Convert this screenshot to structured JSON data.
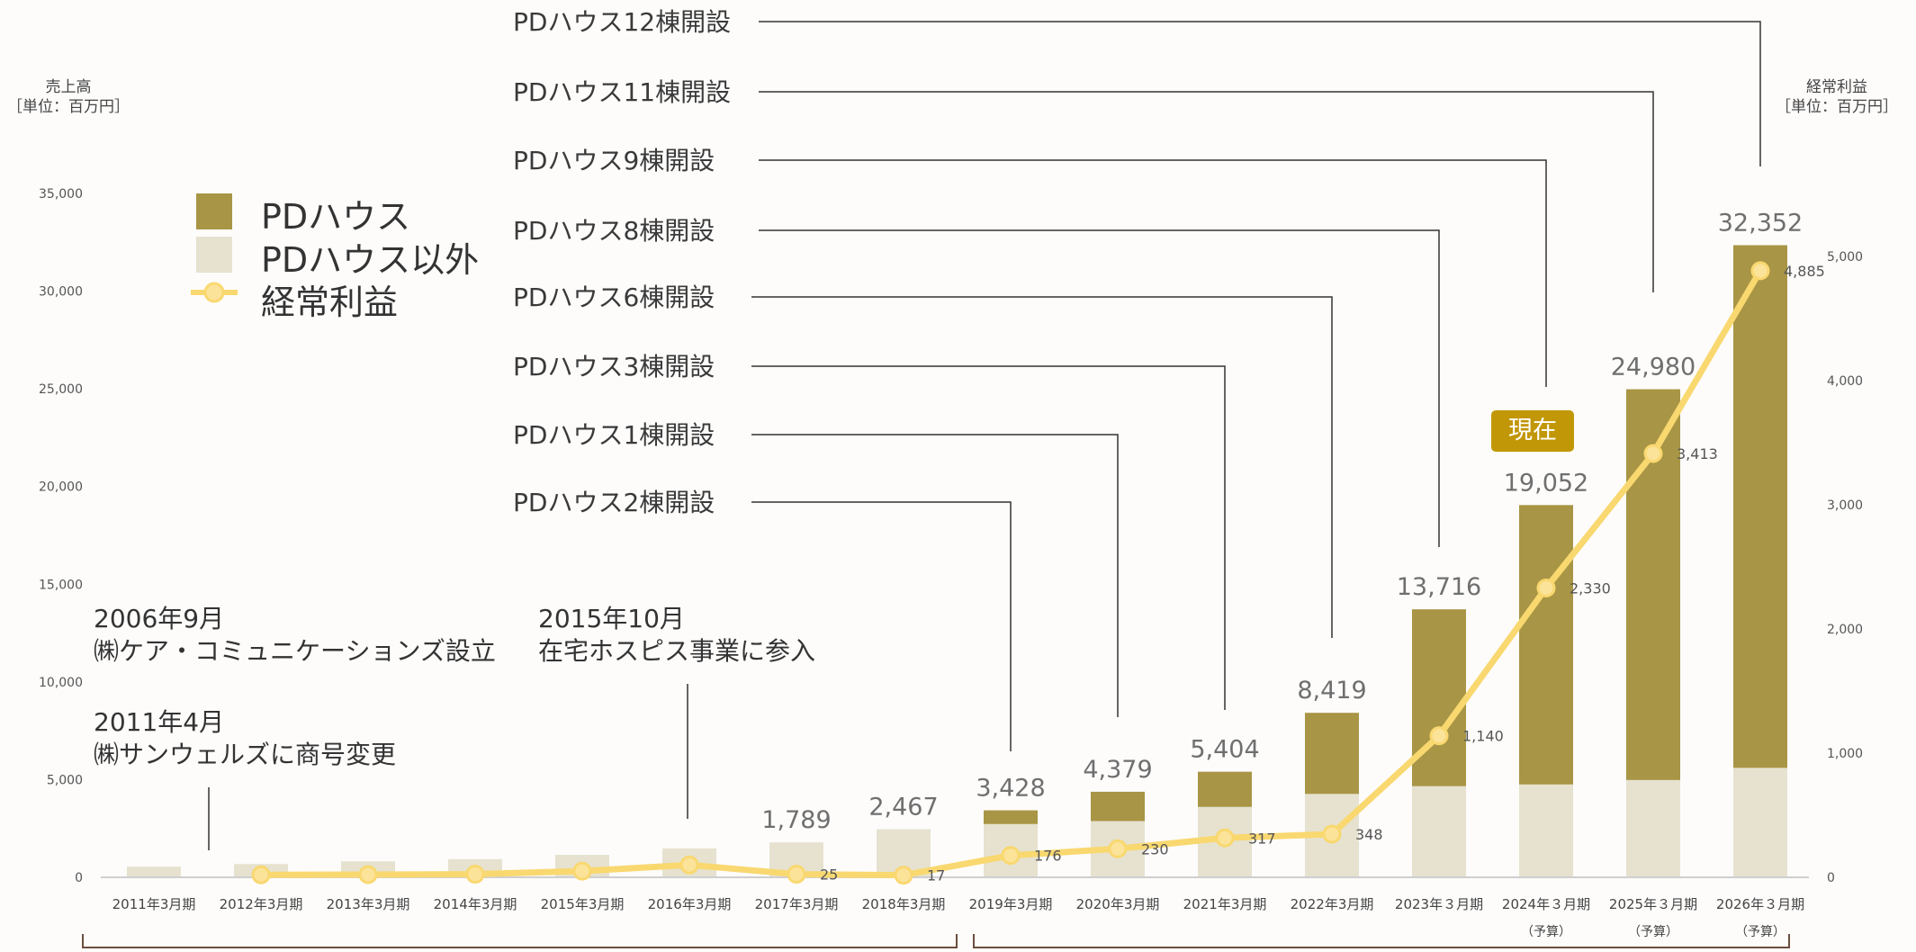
{
  "chart_data": {
    "type": "bar",
    "categories": [
      "2011年3月期",
      "2012年3月期",
      "2013年3月期",
      "2014年3月期",
      "2015年3月期",
      "2016年3月期",
      "2017年3月期",
      "2018年3月期",
      "2019年3月期",
      "2020年3月期",
      "2021年3月期",
      "2022年3月期",
      "2023年３月期",
      "2024年３月期",
      "2025年３月期",
      "2026年３月期"
    ],
    "category_notes": [
      "",
      "",
      "",
      "",
      "",
      "",
      "",
      "",
      "",
      "",
      "",
      "",
      "",
      "（予算）",
      "（予算）",
      "（予算）"
    ],
    "series": [
      {
        "name": "PDハウス",
        "type": "bar",
        "stack": "sales",
        "color": "#a89545",
        "values": [
          0,
          0,
          0,
          0,
          0,
          0,
          0,
          0,
          700,
          1500,
          1800,
          4150,
          9050,
          14300,
          20000,
          26750
        ]
      },
      {
        "name": "PDハウス以外",
        "type": "bar",
        "stack": "sales",
        "color": "#e6e2cf",
        "values": [
          550,
          680,
          820,
          930,
          1150,
          1480,
          1789,
          2467,
          2728,
          2879,
          3604,
          4269,
          4666,
          4752,
          4980,
          5602
        ]
      },
      {
        "name": "経常利益",
        "type": "line",
        "axis": "right",
        "color": "#f9d870",
        "values": [
          null,
          20,
          22,
          25,
          50,
          100,
          25,
          17,
          176,
          230,
          317,
          348,
          1140,
          2330,
          3413,
          4885
        ]
      }
    ],
    "total_labels": [
      "",
      "",
      "",
      "",
      "",
      "",
      "1,789",
      "2,467",
      "3,428",
      "4,379",
      "5,404",
      "8,419",
      "13,716",
      "19,052",
      "24,980",
      "32,352"
    ],
    "line_labels": [
      "",
      "",
      "",
      "",
      "",
      "",
      "25",
      "17",
      "176",
      "230",
      "317",
      "348",
      "1,140",
      "2,330",
      "3,413",
      "4,885"
    ],
    "y_left": {
      "min": 0,
      "max": 35000,
      "ticks": [
        "0",
        "5,000",
        "10,000",
        "15,000",
        "20,000",
        "25,000",
        "30,000",
        "35,000"
      ],
      "title": "売上高",
      "unit": "［単位：百万円］"
    },
    "y_right": {
      "min": 0,
      "max": 5000,
      "ticks": [
        "0",
        "1,000",
        "2,000",
        "3,000",
        "4,000",
        "5,000"
      ],
      "title": "経常利益",
      "unit": "［単位：百万円］"
    },
    "legend": [
      "PDハウス",
      "PDハウス以外",
      "経常利益"
    ],
    "legend_position": "top-left",
    "grid": false
  },
  "annotations": {
    "callouts": [
      {
        "text": "PDハウス2棟開設",
        "category": "2019年3月期"
      },
      {
        "text": "PDハウス1棟開設",
        "category": "2020年3月期"
      },
      {
        "text": "PDハウス3棟開設",
        "category": "2021年3月期"
      },
      {
        "text": "PDハウス6棟開設",
        "category": "2022年3月期"
      },
      {
        "text": "PDハウス8棟開設",
        "category": "2023年３月期"
      },
      {
        "text": "PDハウス9棟開設",
        "category": "2024年３月期"
      },
      {
        "text": "PDハウス11棟開設",
        "category": "2025年３月期"
      },
      {
        "text": "PDハウス12棟開設",
        "category": "2026年３月期"
      }
    ],
    "notes": {
      "founded_date": "2006年9月",
      "founded_text": "㈱ケア・コミュニケーションズ設立",
      "rename_date": "2011年4月",
      "rename_text": "㈱サンウェルズに商号変更",
      "hospice_date": "2015年10月",
      "hospice_text": "在宅ホスピス事業に参入"
    },
    "current_badge": "現在"
  }
}
